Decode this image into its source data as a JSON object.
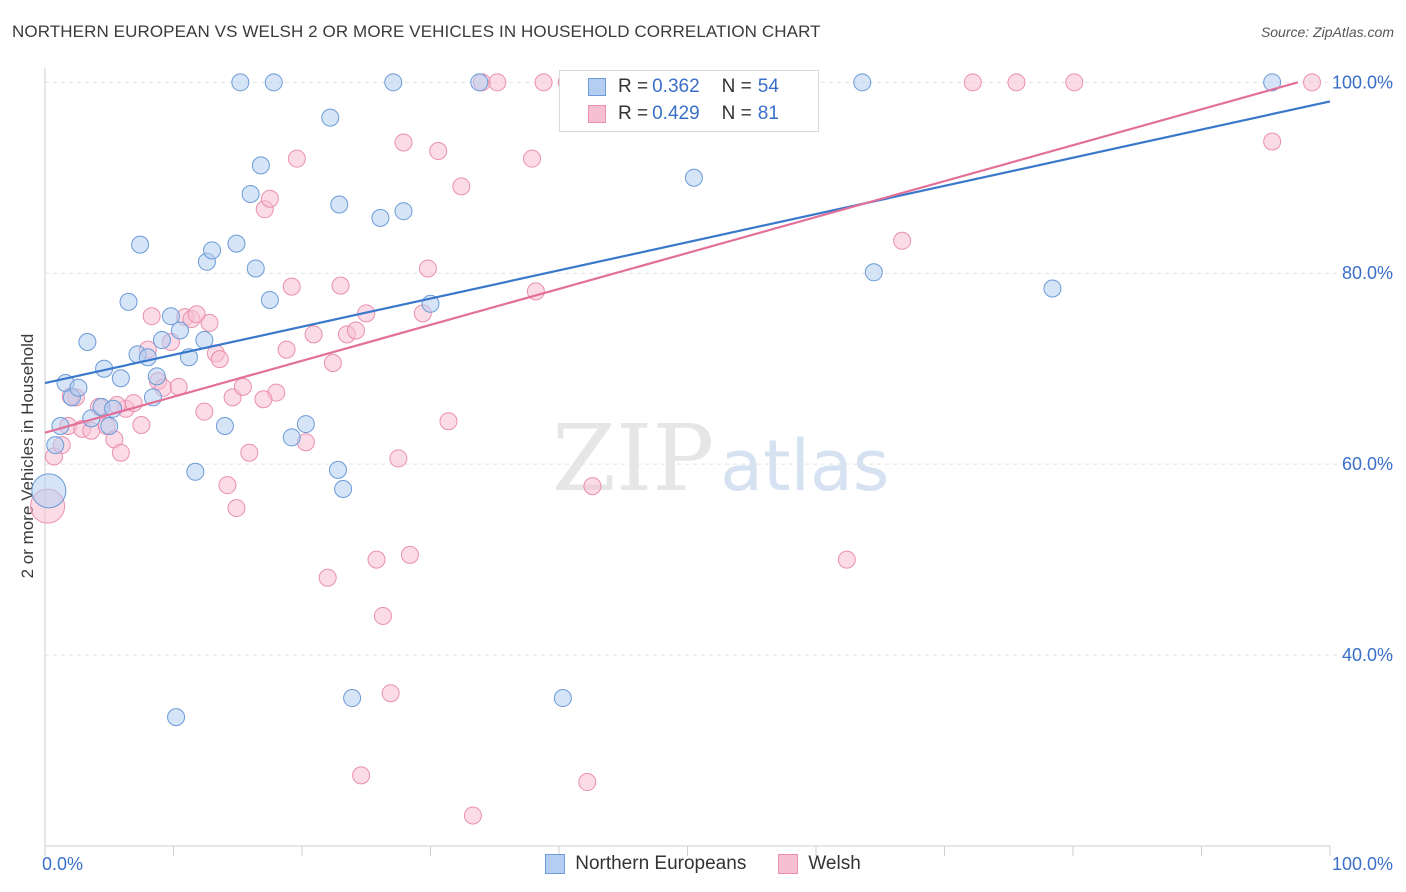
{
  "title": "NORTHERN EUROPEAN VS WELSH 2 OR MORE VEHICLES IN HOUSEHOLD CORRELATION CHART",
  "source": "Source: ZipAtlas.com",
  "watermark": {
    "zip": "ZIP",
    "atlas": "atlas"
  },
  "legend_top": [
    {
      "r_label": "R =",
      "r_value": "0.362",
      "n_label": "N =",
      "n_value": "54"
    },
    {
      "r_label": "R =",
      "r_value": "0.429",
      "n_label": "N =",
      "n_value": "81"
    }
  ],
  "colors": {
    "blue_fill": "#b5cdf0",
    "blue_stroke": "#6b9bd8",
    "blue_line": "#3a78cc",
    "pink_fill": "#f7c0d2",
    "pink_stroke": "#ea8fae",
    "pink_line": "#e27098",
    "grid": "#e2e2e2",
    "tick_text": "#3a6fc9"
  },
  "chart_data": {
    "type": "scatter",
    "title": "NORTHERN EUROPEAN VS WELSH 2 OR MORE VEHICLES IN HOUSEHOLD CORRELATION CHART",
    "xlabel": "",
    "ylabel": "2 or more Vehicles in Household",
    "xlim": [
      0,
      100
    ],
    "ylim": [
      20,
      101.5
    ],
    "x_tick_labels": [
      {
        "value": 0,
        "label": "0.0%"
      },
      {
        "value": 100,
        "label": "100.0%"
      }
    ],
    "y_tick_labels": [
      {
        "value": 40,
        "label": "40.0%"
      },
      {
        "value": 60,
        "label": "60.0%"
      },
      {
        "value": 80,
        "label": "80.0%"
      },
      {
        "value": 100,
        "label": "100.0%"
      }
    ],
    "grid": true,
    "legend_position": "bottom",
    "series": [
      {
        "name": "Northern Europeans",
        "r": 0.362,
        "n": 54,
        "trend": [
          [
            0,
            68.5
          ],
          [
            100,
            98
          ]
        ],
        "points": [
          [
            0.3,
            57.2
          ],
          [
            0.8,
            62
          ],
          [
            1.2,
            64
          ],
          [
            1.6,
            68.5
          ],
          [
            2.1,
            67
          ],
          [
            2.6,
            68
          ],
          [
            3.3,
            72.8
          ],
          [
            3.6,
            64.8
          ],
          [
            4.4,
            66
          ],
          [
            4.6,
            70
          ],
          [
            5.0,
            64
          ],
          [
            5.3,
            65.8
          ],
          [
            5.9,
            69
          ],
          [
            6.5,
            77
          ],
          [
            7.2,
            71.5
          ],
          [
            7.4,
            83
          ],
          [
            8.0,
            71.2
          ],
          [
            8.4,
            67
          ],
          [
            8.7,
            69.2
          ],
          [
            9.1,
            73
          ],
          [
            9.8,
            75.5
          ],
          [
            10.2,
            33.5
          ],
          [
            10.5,
            74
          ],
          [
            11.2,
            71.2
          ],
          [
            11.7,
            59.2
          ],
          [
            12.4,
            73
          ],
          [
            12.6,
            81.2
          ],
          [
            13.0,
            82.4
          ],
          [
            14.0,
            64
          ],
          [
            14.9,
            83.1
          ],
          [
            15.2,
            100
          ],
          [
            16.0,
            88.3
          ],
          [
            16.4,
            80.5
          ],
          [
            16.8,
            91.3
          ],
          [
            17.5,
            77.2
          ],
          [
            17.8,
            100
          ],
          [
            19.2,
            62.8
          ],
          [
            20.3,
            64.2
          ],
          [
            22.2,
            96.3
          ],
          [
            22.8,
            59.4
          ],
          [
            23.2,
            57.4
          ],
          [
            23.9,
            35.5
          ],
          [
            22.9,
            87.2
          ],
          [
            26.1,
            85.8
          ],
          [
            27.1,
            100
          ],
          [
            27.9,
            86.5
          ],
          [
            30.0,
            76.8
          ],
          [
            33.8,
            100
          ],
          [
            40.3,
            35.5
          ],
          [
            44.6,
            100
          ],
          [
            50.5,
            90
          ],
          [
            63.6,
            100
          ],
          [
            64.5,
            80.1
          ],
          [
            78.4,
            78.4
          ],
          [
            95.5,
            100
          ]
        ]
      },
      {
        "name": "Welsh",
        "r": 0.429,
        "n": 81,
        "trend": [
          [
            0,
            63.3
          ],
          [
            97.5,
            100
          ]
        ],
        "points": [
          [
            0.2,
            55.6
          ],
          [
            0.7,
            60.8
          ],
          [
            1.3,
            62
          ],
          [
            1.8,
            64
          ],
          [
            2.4,
            67
          ],
          [
            2.9,
            63.7
          ],
          [
            3.6,
            63.5
          ],
          [
            4.2,
            66
          ],
          [
            4.8,
            64
          ],
          [
            5.4,
            62.6
          ],
          [
            5.9,
            61.2
          ],
          [
            6.3,
            65.8
          ],
          [
            6.9,
            66.4
          ],
          [
            7.5,
            64.1
          ],
          [
            8.0,
            72
          ],
          [
            8.3,
            75.5
          ],
          [
            8.8,
            68.7
          ],
          [
            9.2,
            68
          ],
          [
            9.8,
            72.8
          ],
          [
            10.4,
            68.1
          ],
          [
            10.9,
            75.4
          ],
          [
            11.4,
            75.2
          ],
          [
            11.8,
            75.7
          ],
          [
            12.4,
            65.5
          ],
          [
            12.8,
            74.8
          ],
          [
            13.3,
            71.6
          ],
          [
            13.6,
            71
          ],
          [
            14.2,
            57.8
          ],
          [
            14.6,
            67
          ],
          [
            14.9,
            55.4
          ],
          [
            15.4,
            68.1
          ],
          [
            15.9,
            61.2
          ],
          [
            17.1,
            86.7
          ],
          [
            17.5,
            87.8
          ],
          [
            18.0,
            67.5
          ],
          [
            18.8,
            72
          ],
          [
            19.2,
            78.6
          ],
          [
            19.6,
            92
          ],
          [
            20.3,
            62.3
          ],
          [
            20.9,
            73.6
          ],
          [
            22.0,
            48.1
          ],
          [
            22.4,
            70.6
          ],
          [
            23.0,
            78.7
          ],
          [
            23.5,
            73.6
          ],
          [
            24.2,
            74
          ],
          [
            24.6,
            27.4
          ],
          [
            25.0,
            75.8
          ],
          [
            25.8,
            50
          ],
          [
            26.3,
            44.1
          ],
          [
            26.9,
            36
          ],
          [
            27.5,
            60.6
          ],
          [
            27.9,
            93.7
          ],
          [
            28.4,
            50.5
          ],
          [
            29.4,
            75.8
          ],
          [
            29.8,
            80.5
          ],
          [
            30.6,
            92.8
          ],
          [
            31.4,
            64.5
          ],
          [
            32.4,
            89.1
          ],
          [
            33.3,
            23.2
          ],
          [
            34.0,
            100
          ],
          [
            35.2,
            100
          ],
          [
            37.9,
            92
          ],
          [
            38.2,
            78.1
          ],
          [
            38.8,
            100
          ],
          [
            40.6,
            100
          ],
          [
            42.2,
            26.7
          ],
          [
            42.6,
            57.7
          ],
          [
            45.2,
            100
          ],
          [
            47.8,
            100
          ],
          [
            54.6,
            100
          ],
          [
            59.0,
            100
          ],
          [
            62.4,
            50
          ],
          [
            66.7,
            83.4
          ],
          [
            72.2,
            100
          ],
          [
            75.6,
            100
          ],
          [
            80.1,
            100
          ],
          [
            95.5,
            93.8
          ],
          [
            98.6,
            100
          ],
          [
            17.0,
            66.8
          ],
          [
            5.6,
            66.2
          ],
          [
            2.0,
            67.1
          ]
        ]
      }
    ]
  }
}
